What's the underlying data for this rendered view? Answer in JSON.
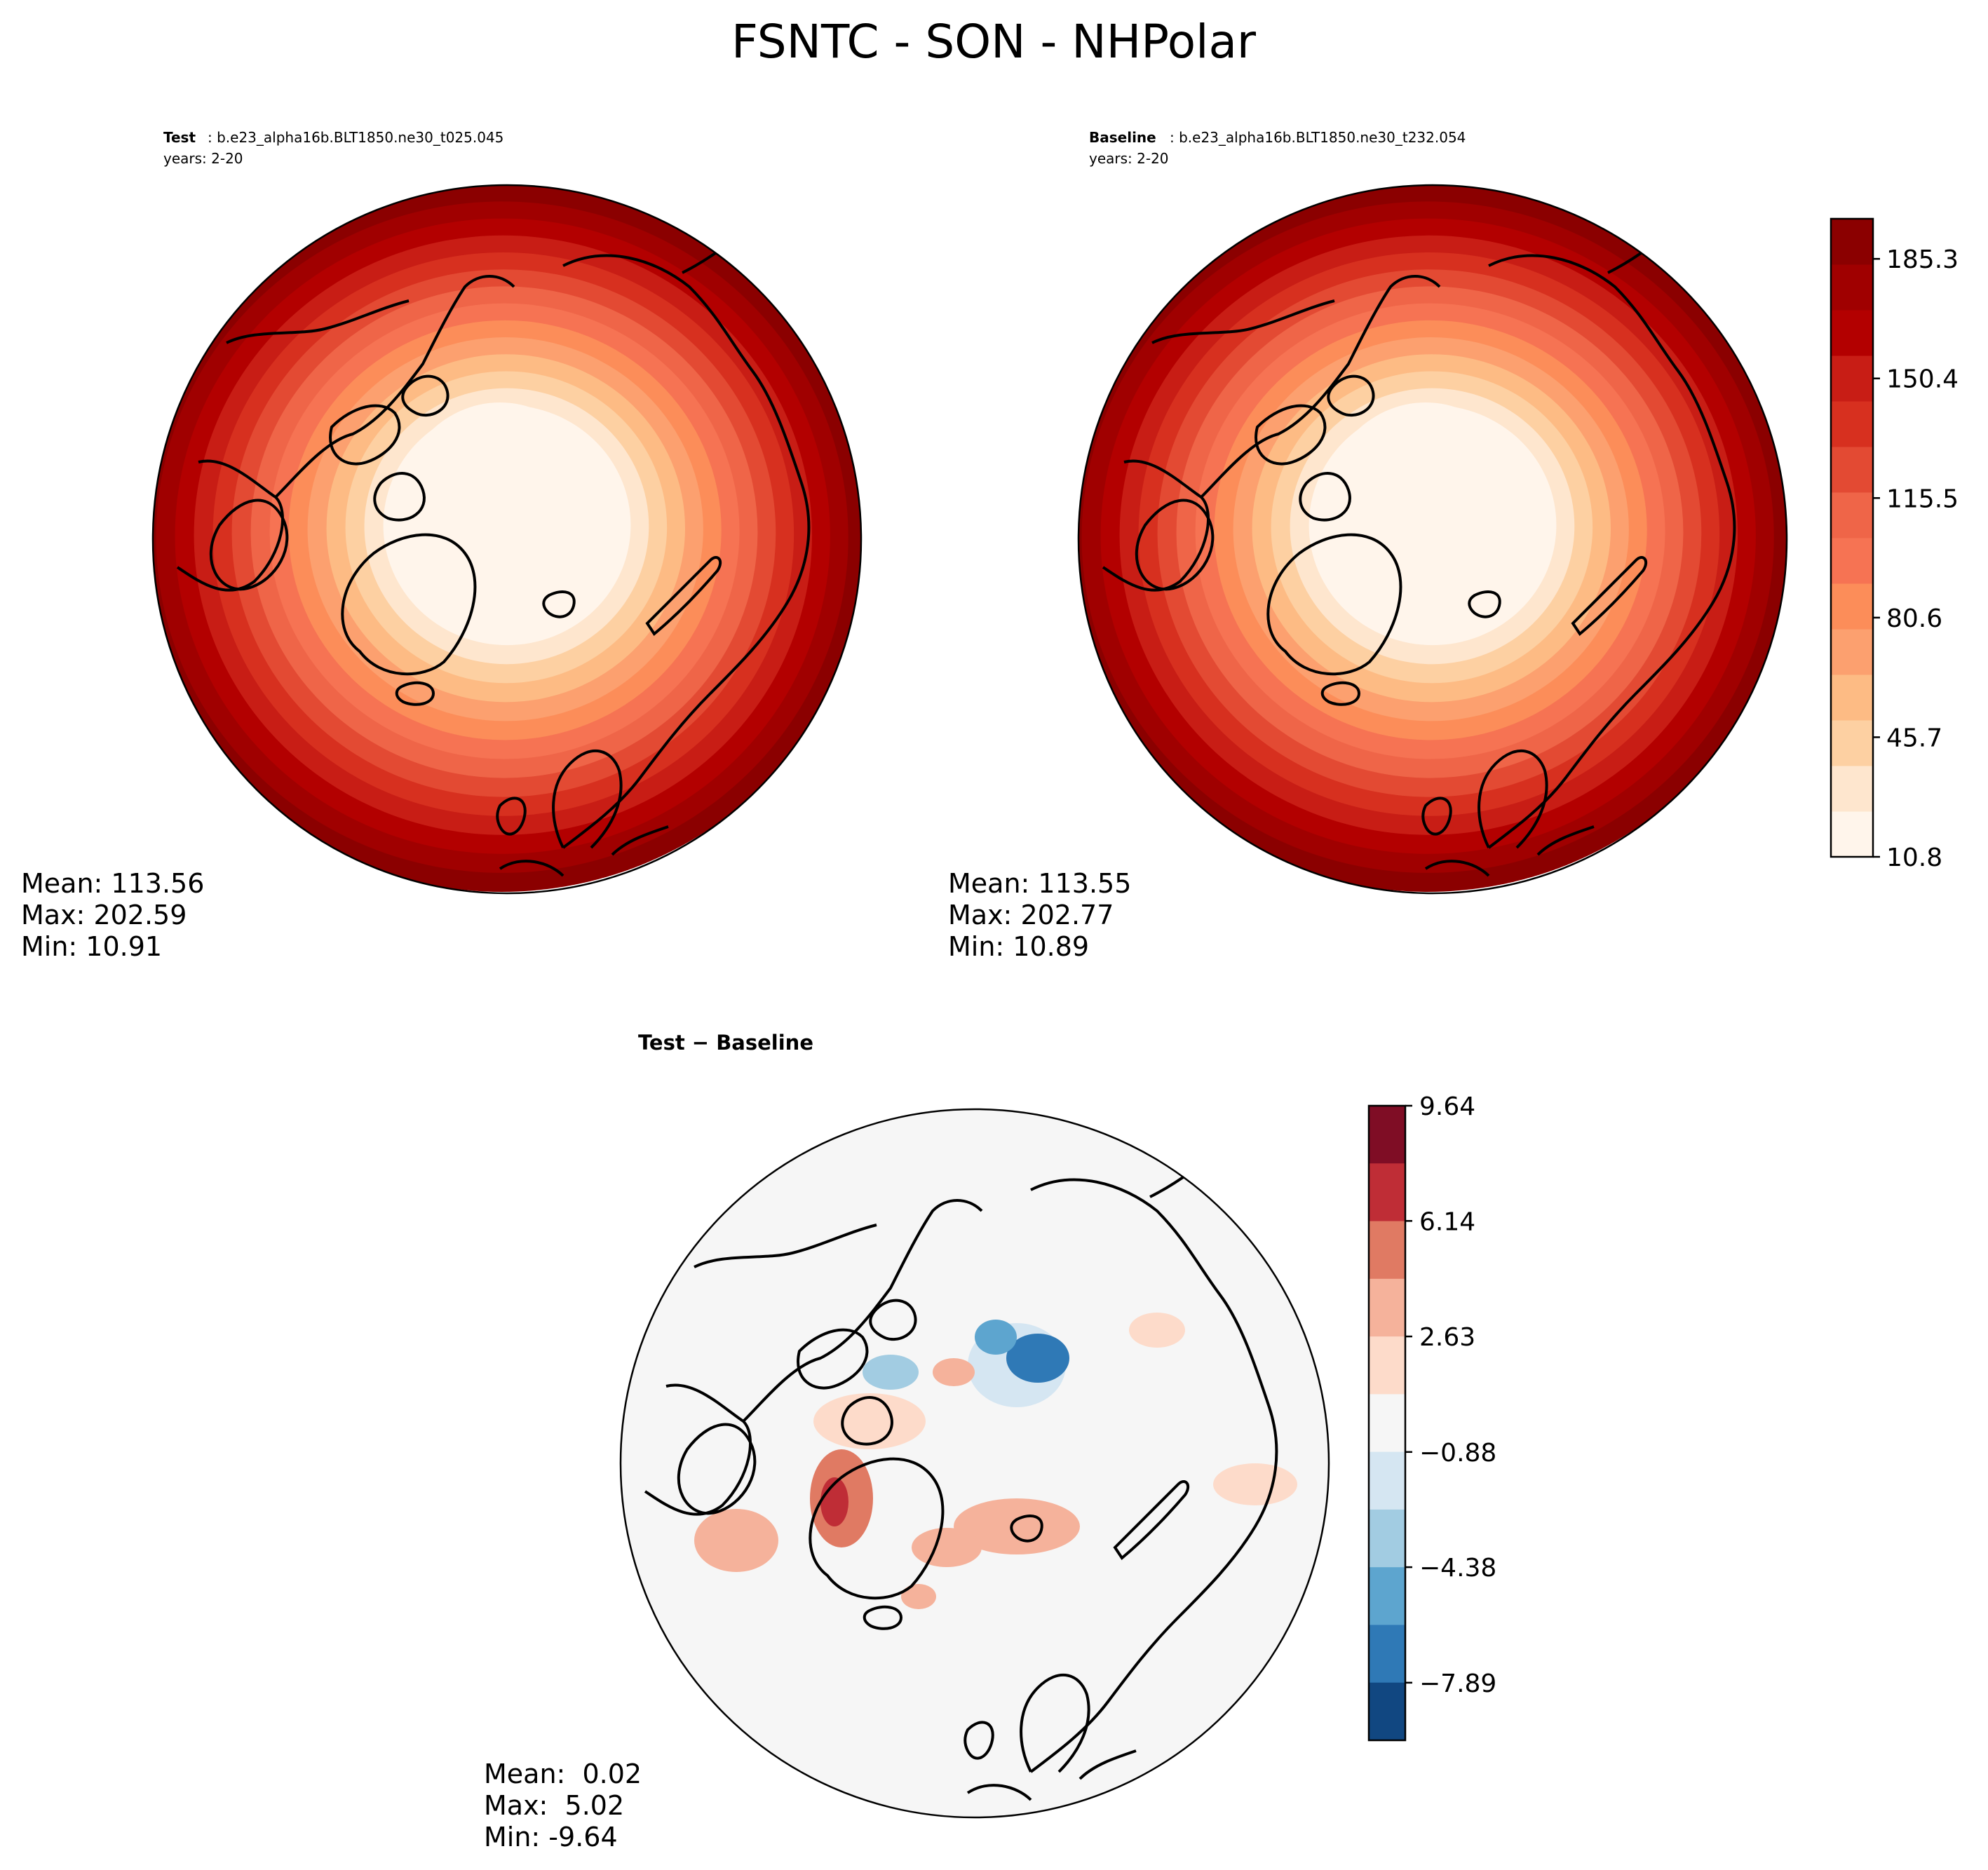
{
  "figure": {
    "title": "FSNTC - SON - NHPolar"
  },
  "chart_data": [
    {
      "type": "heatmap",
      "projection": "north-polar-stereographic",
      "panel": "test",
      "header": {
        "label": "Test",
        "case": ": b.e23_alpha16b.BLT1850.ne30_t025.045",
        "years": "years: 2-20"
      },
      "stats": {
        "mean": "Mean: 113.56",
        "max": "Max: 202.59",
        "min": "Min: 10.91"
      },
      "pattern": "increases radially from pole (min near Greenland/central Arctic) to equatorward edge (max)",
      "value_range": [
        10.91,
        202.59
      ]
    },
    {
      "type": "heatmap",
      "projection": "north-polar-stereographic",
      "panel": "baseline",
      "header": {
        "label": "Baseline",
        "case": ": b.e23_alpha16b.BLT1850.ne30_t232.054",
        "years": "years: 2-20"
      },
      "stats": {
        "mean": "Mean: 113.55",
        "max": "Max: 202.77",
        "min": "Min: 10.89"
      },
      "pattern": "increases radially from pole (min near Greenland/central Arctic) to equatorward edge (max)",
      "value_range": [
        10.89,
        202.77
      ]
    },
    {
      "type": "heatmap",
      "projection": "north-polar-stereographic",
      "panel": "difference",
      "header": {
        "label": "Test − Baseline"
      },
      "stats": {
        "mean": "Mean:  0.02",
        "max": "Max:  5.02",
        "min": "Min: -9.64"
      },
      "pattern": "mostly near zero; positive anomalies near Hudson Bay/Baffin region and Barents sea; negative anomalies near Bering Strait/Chukchi",
      "value_range": [
        -9.64,
        5.02
      ]
    }
  ],
  "colorbars": {
    "sequential": {
      "levels": [
        10.8,
        22.45,
        34.1,
        45.7,
        57.35,
        69.0,
        80.6,
        92.25,
        103.9,
        115.5,
        127.15,
        138.8,
        150.4,
        162.05,
        173.7,
        185.3,
        197.0
      ],
      "tick_labels": [
        "10.8",
        "45.7",
        "80.6",
        "115.5",
        "150.4",
        "185.3"
      ],
      "colors": [
        "#fff5eb",
        "#fee6ce",
        "#fdd0a2",
        "#fdbb84",
        "#fca06f",
        "#fc8d59",
        "#f67353",
        "#ef6548",
        "#e34a33",
        "#d7301f",
        "#c81d15",
        "#b30000",
        "#a00000",
        "#8b0000"
      ]
    },
    "diverging": {
      "tick_labels": [
        "9.64",
        "6.14",
        "2.63",
        "−0.88",
        "−4.38",
        "−7.89"
      ],
      "colors_top_to_bottom": [
        "#7f0d25",
        "#bf2d36",
        "#e07a63",
        "#f5b29b",
        "#fddbca",
        "#f6f6f6",
        "#d5e6f2",
        "#a2cce2",
        "#5da5cf",
        "#2f79b6",
        "#114781"
      ]
    }
  }
}
